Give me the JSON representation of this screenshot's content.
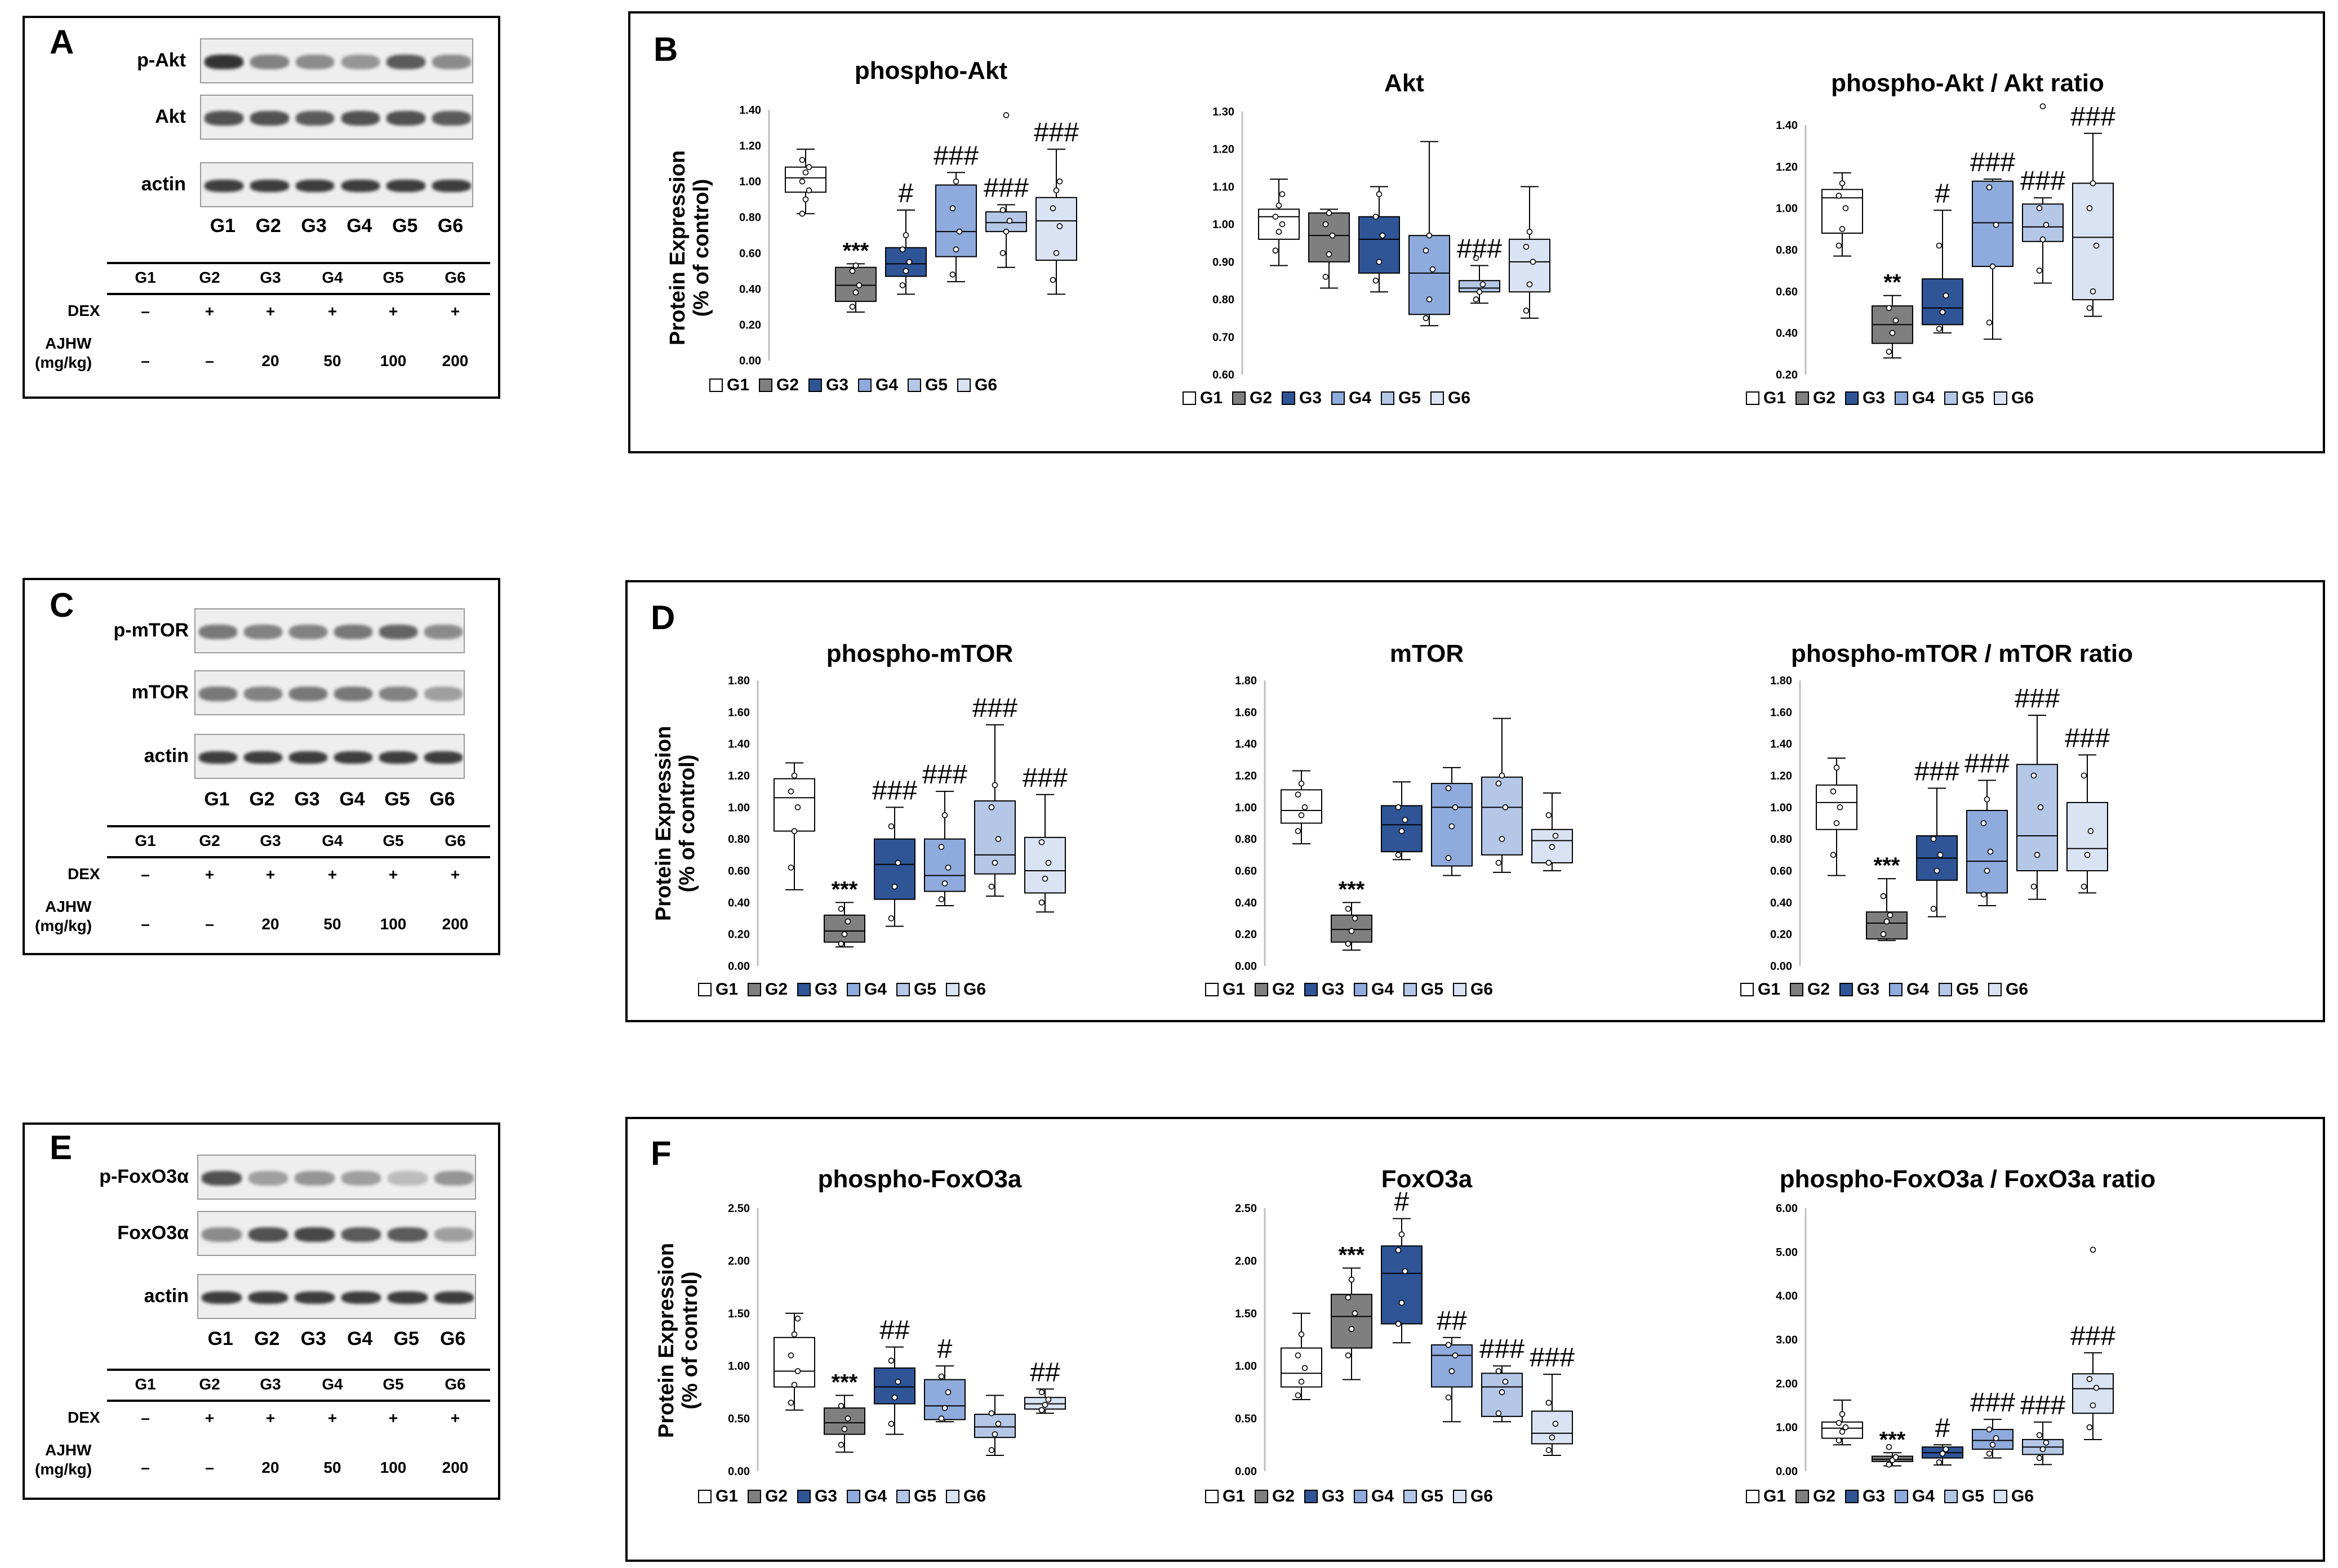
{
  "colors": {
    "G1": "#ffffff",
    "G2": "#7f7f7f",
    "G3": "#2f5597",
    "G4": "#8faadc",
    "G5": "#b4c7e7",
    "G6": "#dae3f3",
    "band": "#2a2a2a"
  },
  "blots": [
    {
      "label": "A",
      "rows": [
        "p-Akt",
        "Akt",
        "actin"
      ]
    },
    {
      "label": "C",
      "rows": [
        "p-mTOR",
        "mTOR",
        "actin"
      ]
    },
    {
      "label": "E",
      "rows": [
        "p-FoxO3α",
        "FoxO3α",
        "actin"
      ]
    }
  ],
  "lanes": [
    "G1",
    "G2",
    "G3",
    "G4",
    "G5",
    "G6"
  ],
  "treatment_table": {
    "groups": [
      "G1",
      "G2",
      "G3",
      "G4",
      "G5",
      "G6"
    ],
    "dex_label": "DEX",
    "dex": [
      "–",
      "+",
      "+",
      "+",
      "+",
      "+"
    ],
    "ajhw_label": "AJHW",
    "ajhw_unit": "(mg/kg)",
    "ajhw": [
      "–",
      "–",
      "20",
      "50",
      "100",
      "200"
    ]
  },
  "panel_letters": [
    "B",
    "D",
    "F"
  ],
  "y_axis_label": [
    "Protein Expression",
    "(% of control)"
  ],
  "legend": [
    "G1",
    "G2",
    "G3",
    "G4",
    "G5",
    "G6"
  ],
  "chart_data": [
    {
      "type": "box",
      "title": "phospho-Akt",
      "ylim": [
        0,
        1.4
      ],
      "ticks": [
        "0.00",
        "0.20",
        "0.40",
        "0.60",
        "0.80",
        "1.00",
        "1.20",
        "1.40"
      ],
      "groups": [
        {
          "q1": 0.94,
          "med": 1.02,
          "q3": 1.08,
          "lo": 0.82,
          "hi": 1.18,
          "pts": [
            0.82,
            0.9,
            0.95,
            1.0,
            1.05,
            1.08,
            1.12
          ],
          "sig": ""
        },
        {
          "q1": 0.33,
          "med": 0.42,
          "q3": 0.52,
          "lo": 0.27,
          "hi": 0.54,
          "pts": [
            0.3,
            0.38,
            0.42,
            0.5,
            0.53
          ],
          "sig": "***"
        },
        {
          "q1": 0.47,
          "med": 0.54,
          "q3": 0.63,
          "lo": 0.37,
          "hi": 0.84,
          "pts": [
            0.42,
            0.5,
            0.55,
            0.62,
            0.7
          ],
          "sig": "#"
        },
        {
          "q1": 0.58,
          "med": 0.72,
          "q3": 0.98,
          "lo": 0.44,
          "hi": 1.05,
          "pts": [
            0.48,
            0.62,
            0.72,
            0.85,
            1.0
          ],
          "sig": "###"
        },
        {
          "q1": 0.72,
          "med": 0.77,
          "q3": 0.83,
          "lo": 0.52,
          "hi": 0.87,
          "pts": [
            0.6,
            0.72,
            0.78,
            0.84,
            1.37
          ],
          "sig": "###"
        },
        {
          "q1": 0.56,
          "med": 0.78,
          "q3": 0.91,
          "lo": 0.37,
          "hi": 1.18,
          "pts": [
            0.45,
            0.6,
            0.75,
            0.85,
            0.95,
            1.0
          ],
          "sig": "###"
        }
      ]
    },
    {
      "type": "box",
      "title": "Akt",
      "ylim": [
        0.6,
        1.3
      ],
      "ticks": [
        "0.60",
        "0.70",
        "0.80",
        "0.90",
        "1.00",
        "1.10",
        "1.20",
        "1.30"
      ],
      "groups": [
        {
          "q1": 0.96,
          "med": 1.02,
          "q3": 1.04,
          "lo": 0.89,
          "hi": 1.12,
          "pts": [
            0.93,
            0.98,
            1.0,
            1.02,
            1.05,
            1.08
          ],
          "sig": ""
        },
        {
          "q1": 0.9,
          "med": 0.97,
          "q3": 1.03,
          "lo": 0.83,
          "hi": 1.04,
          "pts": [
            0.86,
            0.92,
            0.97,
            1.0,
            1.03
          ],
          "sig": ""
        },
        {
          "q1": 0.87,
          "med": 0.96,
          "q3": 1.02,
          "lo": 0.82,
          "hi": 1.1,
          "pts": [
            0.85,
            0.9,
            0.97,
            1.02,
            1.08
          ],
          "sig": ""
        },
        {
          "q1": 0.76,
          "med": 0.87,
          "q3": 0.97,
          "lo": 0.73,
          "hi": 1.22,
          "pts": [
            0.75,
            0.8,
            0.88,
            0.93,
            0.97
          ],
          "sig": ""
        },
        {
          "q1": 0.82,
          "med": 0.83,
          "q3": 0.85,
          "lo": 0.79,
          "hi": 0.89,
          "pts": [
            0.8,
            0.82,
            0.84,
            0.91
          ],
          "sig": "###"
        },
        {
          "q1": 0.82,
          "med": 0.9,
          "q3": 0.96,
          "lo": 0.75,
          "hi": 1.1,
          "pts": [
            0.77,
            0.84,
            0.9,
            0.94,
            0.98
          ],
          "sig": ""
        }
      ]
    },
    {
      "type": "box",
      "title": "phospho-Akt / Akt ratio",
      "ylim": [
        0.2,
        1.4
      ],
      "ticks": [
        "0.20",
        "0.40",
        "0.60",
        "0.80",
        "1.00",
        "1.20",
        "1.40"
      ],
      "groups": [
        {
          "q1": 0.88,
          "med": 1.05,
          "q3": 1.09,
          "lo": 0.77,
          "hi": 1.17,
          "pts": [
            0.82,
            0.9,
            1.0,
            1.06,
            1.12
          ],
          "sig": ""
        },
        {
          "q1": 0.35,
          "med": 0.44,
          "q3": 0.53,
          "lo": 0.28,
          "hi": 0.58,
          "pts": [
            0.31,
            0.4,
            0.46,
            0.52
          ],
          "sig": "**"
        },
        {
          "q1": 0.44,
          "med": 0.52,
          "q3": 0.66,
          "lo": 0.4,
          "hi": 0.99,
          "pts": [
            0.42,
            0.5,
            0.58,
            0.82
          ],
          "sig": "#"
        },
        {
          "q1": 0.72,
          "med": 0.93,
          "q3": 1.13,
          "lo": 0.37,
          "hi": 1.14,
          "pts": [
            0.45,
            0.72,
            0.92,
            1.1
          ],
          "sig": "###"
        },
        {
          "q1": 0.84,
          "med": 0.91,
          "q3": 1.02,
          "lo": 0.64,
          "hi": 1.05,
          "pts": [
            0.7,
            0.85,
            0.92,
            1.0,
            1.49
          ],
          "sig": "###"
        },
        {
          "q1": 0.56,
          "med": 0.86,
          "q3": 1.12,
          "lo": 0.48,
          "hi": 1.36,
          "pts": [
            0.52,
            0.6,
            0.82,
            1.0,
            1.12
          ],
          "sig": "###"
        }
      ]
    },
    {
      "type": "box",
      "title": "phospho-mTOR",
      "ylim": [
        0,
        1.8
      ],
      "ticks": [
        "0.00",
        "0.20",
        "0.40",
        "0.60",
        "0.80",
        "1.00",
        "1.20",
        "1.40",
        "1.60",
        "1.80"
      ],
      "groups": [
        {
          "q1": 0.85,
          "med": 1.06,
          "q3": 1.18,
          "lo": 0.48,
          "hi": 1.28,
          "pts": [
            0.62,
            0.85,
            1.0,
            1.1,
            1.2
          ],
          "sig": ""
        },
        {
          "q1": 0.15,
          "med": 0.22,
          "q3": 0.32,
          "lo": 0.12,
          "hi": 0.4,
          "pts": [
            0.14,
            0.2,
            0.28,
            0.36
          ],
          "sig": "***"
        },
        {
          "q1": 0.42,
          "med": 0.64,
          "q3": 0.8,
          "lo": 0.25,
          "hi": 1.0,
          "pts": [
            0.3,
            0.5,
            0.65,
            0.88
          ],
          "sig": "###"
        },
        {
          "q1": 0.47,
          "med": 0.57,
          "q3": 0.8,
          "lo": 0.38,
          "hi": 1.1,
          "pts": [
            0.42,
            0.52,
            0.62,
            0.75,
            0.95
          ],
          "sig": "###"
        },
        {
          "q1": 0.58,
          "med": 0.7,
          "q3": 1.04,
          "lo": 0.44,
          "hi": 1.52,
          "pts": [
            0.5,
            0.65,
            0.8,
            1.0,
            1.14
          ],
          "sig": "###"
        },
        {
          "q1": 0.46,
          "med": 0.6,
          "q3": 0.81,
          "lo": 0.34,
          "hi": 1.08,
          "pts": [
            0.4,
            0.55,
            0.65,
            0.78
          ],
          "sig": "###"
        }
      ]
    },
    {
      "type": "box",
      "title": "mTOR",
      "ylim": [
        0,
        1.8
      ],
      "ticks": [
        "0.00",
        "0.20",
        "0.40",
        "0.60",
        "0.80",
        "1.00",
        "1.20",
        "1.40",
        "1.60",
        "1.80"
      ],
      "groups": [
        {
          "q1": 0.9,
          "med": 0.98,
          "q3": 1.11,
          "lo": 0.77,
          "hi": 1.23,
          "pts": [
            0.85,
            0.95,
            1.0,
            1.08,
            1.15
          ],
          "sig": ""
        },
        {
          "q1": 0.15,
          "med": 0.23,
          "q3": 0.32,
          "lo": 0.1,
          "hi": 0.4,
          "pts": [
            0.14,
            0.22,
            0.3,
            0.36
          ],
          "sig": "***"
        },
        {
          "q1": 0.72,
          "med": 0.89,
          "q3": 1.01,
          "lo": 0.67,
          "hi": 1.16,
          "pts": [
            0.7,
            0.85,
            0.92,
            1.0
          ],
          "sig": ""
        },
        {
          "q1": 0.63,
          "med": 1.0,
          "q3": 1.15,
          "lo": 0.57,
          "hi": 1.25,
          "pts": [
            0.68,
            0.88,
            1.0,
            1.12
          ],
          "sig": ""
        },
        {
          "q1": 0.7,
          "med": 1.0,
          "q3": 1.19,
          "lo": 0.59,
          "hi": 1.56,
          "pts": [
            0.65,
            0.8,
            1.0,
            1.15,
            1.2
          ],
          "sig": ""
        },
        {
          "q1": 0.65,
          "med": 0.79,
          "q3": 0.86,
          "lo": 0.6,
          "hi": 1.09,
          "pts": [
            0.65,
            0.75,
            0.82,
            0.95
          ],
          "sig": ""
        }
      ]
    },
    {
      "type": "box",
      "title": "phospho-mTOR / mTOR ratio",
      "ylim": [
        0,
        1.8
      ],
      "ticks": [
        "0.00",
        "0.20",
        "0.40",
        "0.60",
        "0.80",
        "1.00",
        "1.20",
        "1.40",
        "1.60",
        "1.80"
      ],
      "groups": [
        {
          "q1": 0.86,
          "med": 1.03,
          "q3": 1.14,
          "lo": 0.57,
          "hi": 1.31,
          "pts": [
            0.7,
            0.9,
            1.0,
            1.1,
            1.25
          ],
          "sig": ""
        },
        {
          "q1": 0.17,
          "med": 0.27,
          "q3": 0.34,
          "lo": 0.16,
          "hi": 0.55,
          "pts": [
            0.2,
            0.28,
            0.32,
            0.44
          ],
          "sig": "***"
        },
        {
          "q1": 0.54,
          "med": 0.68,
          "q3": 0.82,
          "lo": 0.31,
          "hi": 1.12,
          "pts": [
            0.36,
            0.6,
            0.7,
            0.8
          ],
          "sig": "###"
        },
        {
          "q1": 0.46,
          "med": 0.66,
          "q3": 0.98,
          "lo": 0.38,
          "hi": 1.17,
          "pts": [
            0.45,
            0.6,
            0.72,
            0.9,
            1.05
          ],
          "sig": "###"
        },
        {
          "q1": 0.6,
          "med": 0.82,
          "q3": 1.27,
          "lo": 0.42,
          "hi": 1.58,
          "pts": [
            0.5,
            0.7,
            1.0,
            1.2
          ],
          "sig": "###"
        },
        {
          "q1": 0.6,
          "med": 0.74,
          "q3": 1.03,
          "lo": 0.46,
          "hi": 1.33,
          "pts": [
            0.5,
            0.7,
            0.85,
            1.2
          ],
          "sig": "###"
        }
      ]
    },
    {
      "type": "box",
      "title": "phospho-FoxO3a",
      "ylim": [
        0,
        2.5
      ],
      "ticks": [
        "0.00",
        "0.50",
        "1.00",
        "1.50",
        "2.00",
        "2.50"
      ],
      "groups": [
        {
          "q1": 0.8,
          "med": 0.95,
          "q3": 1.27,
          "lo": 0.58,
          "hi": 1.5,
          "pts": [
            0.65,
            0.82,
            0.95,
            1.1,
            1.3,
            1.45
          ],
          "sig": ""
        },
        {
          "q1": 0.35,
          "med": 0.46,
          "q3": 0.6,
          "lo": 0.18,
          "hi": 0.72,
          "pts": [
            0.25,
            0.4,
            0.5,
            0.62
          ],
          "sig": "***"
        },
        {
          "q1": 0.64,
          "med": 0.8,
          "q3": 0.98,
          "lo": 0.35,
          "hi": 1.18,
          "pts": [
            0.45,
            0.7,
            0.85,
            1.05
          ],
          "sig": "##"
        },
        {
          "q1": 0.49,
          "med": 0.62,
          "q3": 0.87,
          "lo": 0.47,
          "hi": 1.0,
          "pts": [
            0.5,
            0.6,
            0.75,
            0.9
          ],
          "sig": "#"
        },
        {
          "q1": 0.32,
          "med": 0.42,
          "q3": 0.54,
          "lo": 0.15,
          "hi": 0.72,
          "pts": [
            0.2,
            0.35,
            0.45,
            0.55
          ],
          "sig": ""
        },
        {
          "q1": 0.59,
          "med": 0.64,
          "q3": 0.7,
          "lo": 0.55,
          "hi": 0.78,
          "pts": [
            0.58,
            0.63,
            0.68,
            0.75
          ],
          "sig": "##"
        }
      ]
    },
    {
      "type": "box",
      "title": "FoxO3a",
      "ylim": [
        0,
        2.5
      ],
      "ticks": [
        "0.00",
        "0.50",
        "1.00",
        "1.50",
        "2.00",
        "2.50"
      ],
      "groups": [
        {
          "q1": 0.8,
          "med": 0.93,
          "q3": 1.17,
          "lo": 0.68,
          "hi": 1.5,
          "pts": [
            0.72,
            0.85,
            0.98,
            1.1,
            1.3
          ],
          "sig": ""
        },
        {
          "q1": 1.17,
          "med": 1.47,
          "q3": 1.68,
          "lo": 0.87,
          "hi": 1.93,
          "pts": [
            1.1,
            1.35,
            1.5,
            1.65,
            1.82
          ],
          "sig": "***"
        },
        {
          "q1": 1.4,
          "med": 1.88,
          "q3": 2.14,
          "lo": 1.22,
          "hi": 2.4,
          "pts": [
            1.4,
            1.6,
            1.9,
            2.1,
            2.25
          ],
          "sig": "#"
        },
        {
          "q1": 0.8,
          "med": 1.1,
          "q3": 1.2,
          "lo": 0.47,
          "hi": 1.27,
          "pts": [
            0.7,
            0.95,
            1.1,
            1.2
          ],
          "sig": "##"
        },
        {
          "q1": 0.52,
          "med": 0.8,
          "q3": 0.93,
          "lo": 0.47,
          "hi": 1.0,
          "pts": [
            0.55,
            0.75,
            0.85,
            0.95
          ],
          "sig": "###"
        },
        {
          "q1": 0.26,
          "med": 0.36,
          "q3": 0.57,
          "lo": 0.15,
          "hi": 0.92,
          "pts": [
            0.2,
            0.32,
            0.45,
            0.65
          ],
          "sig": "###"
        }
      ]
    },
    {
      "type": "box",
      "title": "phospho-FoxO3a / FoxO3a ratio",
      "ylim": [
        0,
        6
      ],
      "ticks": [
        "0.00",
        "1.00",
        "2.00",
        "3.00",
        "4.00",
        "5.00",
        "6.00"
      ],
      "groups": [
        {
          "q1": 0.75,
          "med": 0.98,
          "q3": 1.12,
          "lo": 0.6,
          "hi": 1.62,
          "pts": [
            0.7,
            0.9,
            1.0,
            1.1,
            1.3
          ],
          "sig": ""
        },
        {
          "q1": 0.22,
          "med": 0.27,
          "q3": 0.34,
          "lo": 0.12,
          "hi": 0.42,
          "pts": [
            0.15,
            0.25,
            0.32,
            0.55
          ],
          "sig": "***"
        },
        {
          "q1": 0.3,
          "med": 0.42,
          "q3": 0.55,
          "lo": 0.14,
          "hi": 0.6,
          "pts": [
            0.2,
            0.4,
            0.5
          ],
          "sig": "#"
        },
        {
          "q1": 0.5,
          "med": 0.7,
          "q3": 0.95,
          "lo": 0.3,
          "hi": 1.18,
          "pts": [
            0.4,
            0.6,
            0.75,
            0.95
          ],
          "sig": "###"
        },
        {
          "q1": 0.38,
          "med": 0.55,
          "q3": 0.72,
          "lo": 0.15,
          "hi": 1.12,
          "pts": [
            0.3,
            0.5,
            0.65,
            0.82
          ],
          "sig": "###"
        },
        {
          "q1": 1.32,
          "med": 1.88,
          "q3": 2.22,
          "lo": 0.72,
          "hi": 2.7,
          "pts": [
            1.0,
            1.5,
            1.9,
            2.1,
            5.05
          ],
          "sig": "###"
        }
      ]
    }
  ]
}
